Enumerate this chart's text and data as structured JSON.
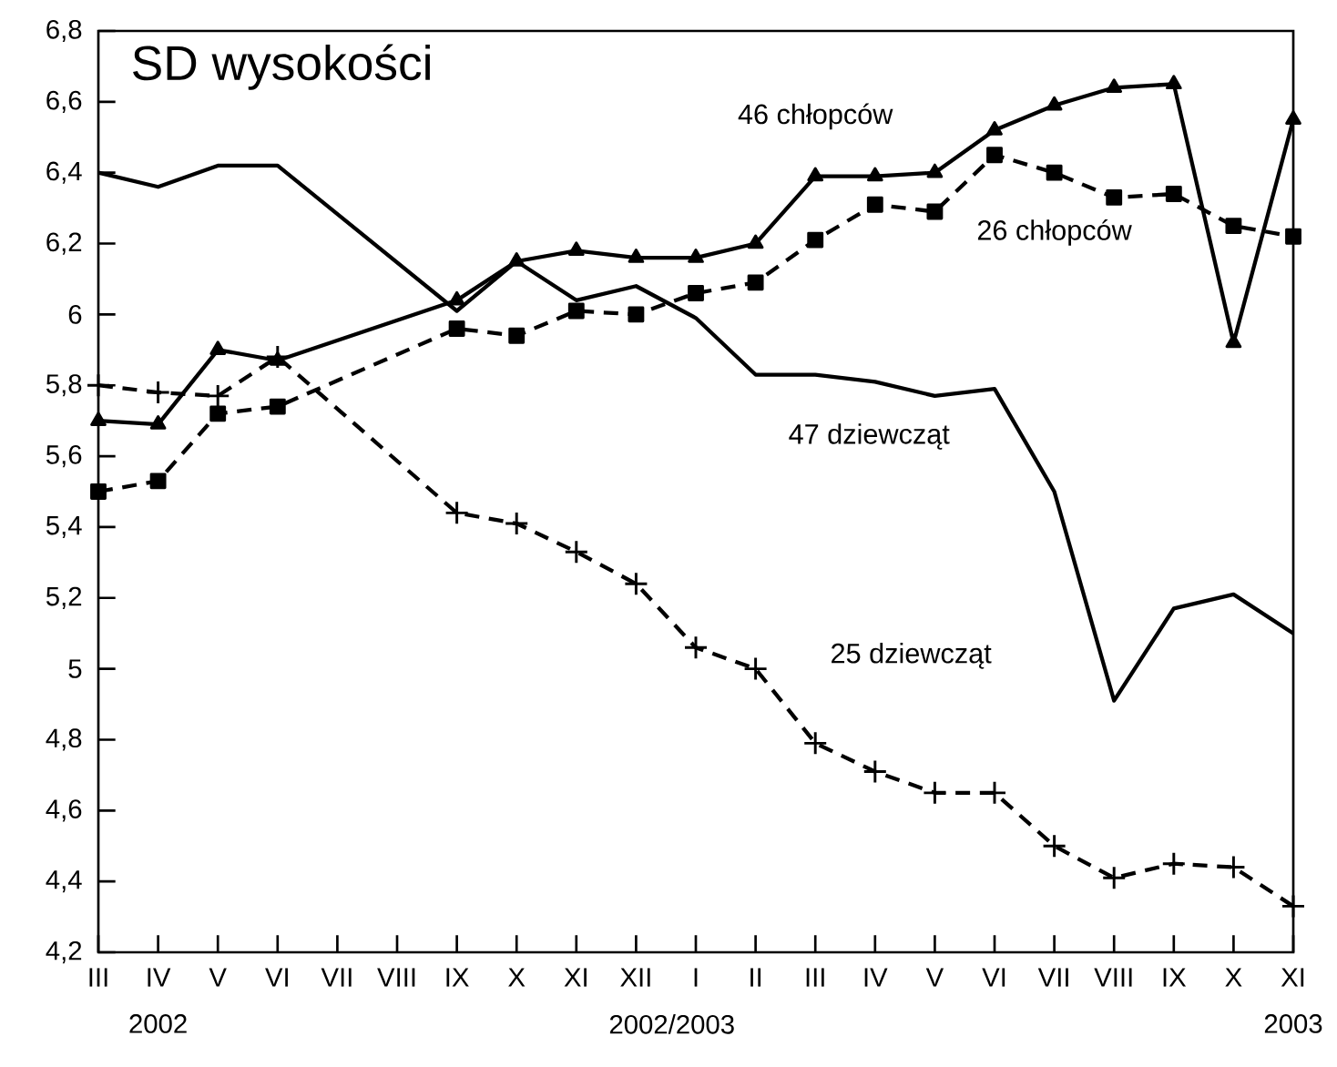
{
  "chart_data": {
    "type": "line",
    "title": "SD wysokości",
    "categories": [
      "III",
      "IV",
      "V",
      "VI",
      "VII",
      "VIII",
      "IX",
      "X",
      "XI",
      "XII",
      "I",
      "II",
      "III",
      "IV",
      "V",
      "VI",
      "VII",
      "VIII",
      "IX",
      "X",
      "XI"
    ],
    "series": [
      {
        "name": "46 chłopców",
        "color": "#000000",
        "marker": "triangle",
        "line_style": "solid",
        "values": [
          5.7,
          5.69,
          5.9,
          5.87,
          null,
          null,
          6.04,
          6.15,
          6.18,
          6.16,
          6.16,
          6.2,
          6.39,
          6.39,
          6.4,
          6.52,
          6.59,
          6.64,
          6.65,
          5.92,
          6.55
        ]
      },
      {
        "name": "26 chłopców",
        "color": "#000000",
        "marker": "square",
        "line_style": "dashed",
        "values": [
          5.5,
          5.53,
          5.72,
          5.74,
          null,
          null,
          5.96,
          5.94,
          6.01,
          6.0,
          6.06,
          6.09,
          6.21,
          6.31,
          6.29,
          6.45,
          6.4,
          6.33,
          6.34,
          6.25,
          6.22
        ]
      },
      {
        "name": "47 dziewcząt",
        "color": "#000000",
        "marker": "none",
        "line_style": "solid",
        "values": [
          6.4,
          6.36,
          6.42,
          6.42,
          null,
          null,
          6.01,
          6.15,
          6.04,
          6.08,
          5.99,
          5.83,
          5.83,
          5.81,
          5.77,
          5.79,
          5.5,
          4.91,
          5.17,
          5.21,
          5.1
        ]
      },
      {
        "name": "25 dziewcząt",
        "color": "#000000",
        "marker": "cross",
        "line_style": "dashed",
        "values": [
          5.8,
          5.78,
          5.77,
          5.88,
          null,
          null,
          5.44,
          5.41,
          5.33,
          5.24,
          5.06,
          5.0,
          4.79,
          4.71,
          4.65,
          4.65,
          4.5,
          4.41,
          4.45,
          4.44,
          4.33
        ]
      }
    ],
    "ylim": [
      4.2,
      6.8
    ],
    "yticks": [
      {
        "value": 4.2,
        "label": "4,2"
      },
      {
        "value": 4.4,
        "label": "4,4"
      },
      {
        "value": 4.6,
        "label": "4,6"
      },
      {
        "value": 4.8,
        "label": "4,8"
      },
      5,
      {
        "value": 5.2,
        "label": "5,2"
      },
      {
        "value": 5.4,
        "label": "5,4"
      },
      {
        "value": 5.6,
        "label": "5,6"
      },
      {
        "value": 5.8,
        "label": "5,8"
      },
      6,
      {
        "value": 6.2,
        "label": "6,2"
      },
      {
        "value": 6.4,
        "label": "6,4"
      },
      {
        "value": 6.6,
        "label": "6,6"
      },
      {
        "value": 6.8,
        "label": "6,8"
      }
    ],
    "annotations": [
      "2002",
      "2002/2003",
      "2003"
    ],
    "grid": false
  }
}
